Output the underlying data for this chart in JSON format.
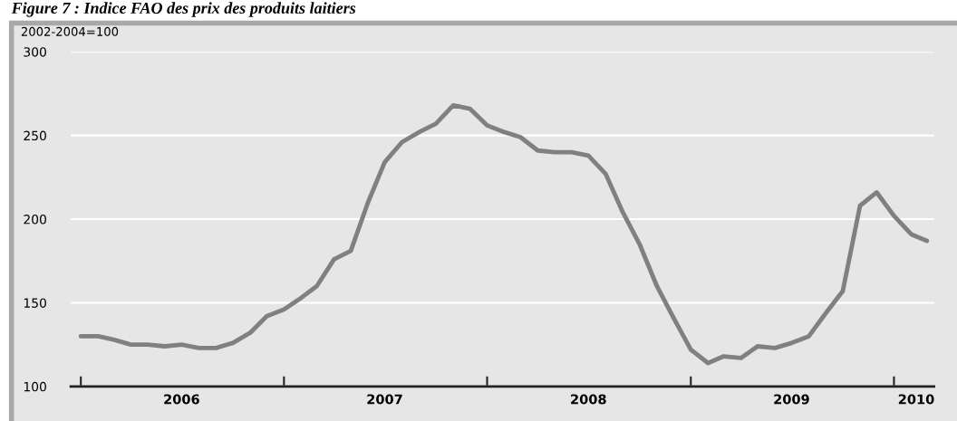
{
  "chart_data": {
    "type": "line",
    "title": "Figure 7 : Indice FAO des prix des produits laitiers",
    "ylabel": "2002-2004=100",
    "x": [
      "2006-01",
      "2006-02",
      "2006-03",
      "2006-04",
      "2006-05",
      "2006-06",
      "2006-07",
      "2006-08",
      "2006-09",
      "2006-10",
      "2006-11",
      "2006-12",
      "2007-01",
      "2007-02",
      "2007-03",
      "2007-04",
      "2007-05",
      "2007-06",
      "2007-07",
      "2007-08",
      "2007-09",
      "2007-10",
      "2007-11",
      "2007-12",
      "2008-01",
      "2008-02",
      "2008-03",
      "2008-04",
      "2008-05",
      "2008-06",
      "2008-07",
      "2008-08",
      "2008-09",
      "2008-10",
      "2008-11",
      "2008-12",
      "2009-01",
      "2009-02",
      "2009-03",
      "2009-04",
      "2009-05",
      "2009-06",
      "2009-07",
      "2009-08",
      "2009-09",
      "2009-10",
      "2009-11",
      "2009-12",
      "2010-01",
      "2010-02",
      "2010-03"
    ],
    "series": [
      {
        "color": "#808080",
        "values": [
          130,
          130,
          128,
          125,
          125,
          124,
          125,
          123,
          123,
          126,
          132,
          142,
          146,
          153,
          160,
          176,
          181,
          210,
          234,
          246,
          252,
          257,
          268,
          266,
          256,
          252,
          249,
          241,
          240,
          240,
          238,
          227,
          204,
          185,
          160,
          141,
          122,
          114,
          118,
          117,
          124,
          123,
          126,
          130,
          144,
          157,
          208,
          216,
          202,
          191,
          187
        ]
      }
    ],
    "xlim": [
      "2005-12-14",
      "2010-03-14"
    ],
    "xticks": [
      {
        "value": "2006-01-01",
        "label": null
      },
      {
        "value": "2006-07-01",
        "label": "2006"
      },
      {
        "value": "2007-01-01",
        "label": null
      },
      {
        "value": "2007-07-01",
        "label": "2007"
      },
      {
        "value": "2008-01-01",
        "label": null
      },
      {
        "value": "2008-07-01",
        "label": "2008"
      },
      {
        "value": "2009-01-01",
        "label": null
      },
      {
        "value": "2009-07-01",
        "label": "2009"
      },
      {
        "value": "2010-01-01",
        "label": null
      },
      {
        "value": "2010-02-10",
        "label": "2010"
      }
    ],
    "ylim": [
      100,
      300
    ],
    "yticks": [
      100,
      150,
      200,
      250,
      300
    ],
    "grid": "y",
    "marker": "none",
    "line_style": "solid",
    "legend": false
  }
}
